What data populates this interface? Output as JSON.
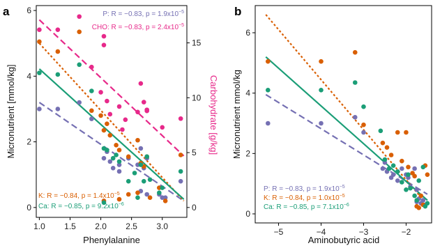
{
  "chart_data": [
    {
      "type": "scatter",
      "panel_label": "a",
      "xlabel": "Phenylalanine",
      "ylabel": "Micronutrient [mmol/kg]",
      "ylabel_right": "Carbohydrate [g/kg]",
      "xlim": [
        0.95,
        3.4
      ],
      "ylim": [
        -0.3,
        6.15
      ],
      "ylim_right": [
        -0.9,
        18.4
      ],
      "x_ticks": [
        1.0,
        1.5,
        2.0,
        2.5,
        3.0
      ],
      "x_tick_labels": [
        "1.0",
        "1.5",
        "2.0",
        "2.5",
        "3.0"
      ],
      "y_ticks": [
        0,
        2,
        4,
        6
      ],
      "y_tick_labels": [
        "0",
        "2",
        "4",
        "6"
      ],
      "y_right_ticks": [
        0,
        5,
        10,
        15
      ],
      "y_right_tick_labels": [
        "0",
        "5",
        "10",
        "15"
      ],
      "grid": false,
      "annotations": {
        "p": {
          "pre": "P: R = −0.83, p = 1.9x10",
          "exp": "−5"
        },
        "cho": {
          "pre": "CHO: R = −0.83, p = 2.4x10",
          "exp": "−5"
        },
        "k": {
          "pre": "K:  R = −0.84, p = 1.4x10",
          "exp": "−5"
        },
        "ca": {
          "pre": "Ca: R = −0.85, p = 9.2x10",
          "exp": "−6"
        }
      },
      "series": [
        {
          "color": "#7570b3",
          "axis": "left",
          "line": "dashed",
          "fit": [
            [
              1.0,
              3.2
            ],
            [
              3.35,
              0.2
            ]
          ],
          "points": [
            [
              1.0,
              3.0
            ],
            [
              1.3,
              3.0
            ],
            [
              1.65,
              3.2
            ],
            [
              1.85,
              2.7
            ],
            [
              2.05,
              1.5
            ],
            [
              2.1,
              1.7
            ],
            [
              2.15,
              1.4
            ],
            [
              2.2,
              1.2
            ],
            [
              2.3,
              1.3
            ],
            [
              2.3,
              1.1
            ],
            [
              2.45,
              1.5
            ],
            [
              2.6,
              1.3
            ],
            [
              2.65,
              1.8
            ],
            [
              2.7,
              1.2
            ],
            [
              2.75,
              1.5
            ],
            [
              2.75,
              0.4
            ],
            [
              2.95,
              0.4
            ],
            [
              3.0,
              0.3
            ],
            [
              3.05,
              0.3
            ],
            [
              3.3,
              0.8
            ],
            [
              2.05,
              0.2
            ],
            [
              2.65,
              0.5
            ]
          ]
        },
        {
          "color": "#d95f02",
          "axis": "left",
          "line": "dotted",
          "fit": [
            [
              1.0,
              5.0
            ],
            [
              3.35,
              0.2
            ]
          ],
          "points": [
            [
              1.0,
              5.05
            ],
            [
              1.3,
              4.75
            ],
            [
              1.65,
              5.35
            ],
            [
              1.85,
              2.95
            ],
            [
              2.0,
              2.8
            ],
            [
              2.05,
              2.35
            ],
            [
              2.1,
              2.55
            ],
            [
              2.15,
              2.2
            ],
            [
              2.25,
              1.9
            ],
            [
              2.3,
              1.75
            ],
            [
              2.45,
              1.55
            ],
            [
              2.6,
              2.05
            ],
            [
              2.65,
              1.35
            ],
            [
              2.7,
              1.25
            ],
            [
              2.75,
              1.55
            ],
            [
              2.6,
              0.45
            ],
            [
              2.8,
              0.3
            ],
            [
              2.95,
              0.6
            ],
            [
              3.05,
              0.2
            ],
            [
              3.3,
              1.6
            ],
            [
              2.05,
              0.2
            ],
            [
              2.3,
              0.25
            ],
            [
              2.45,
              0.4
            ]
          ]
        },
        {
          "color": "#1b9e77",
          "axis": "left",
          "line": "solid",
          "fit": [
            [
              1.0,
              4.22
            ],
            [
              3.35,
              0.25
            ]
          ],
          "points": [
            [
              1.0,
              4.1
            ],
            [
              1.3,
              4.05
            ],
            [
              1.65,
              4.35
            ],
            [
              1.85,
              3.55
            ],
            [
              2.05,
              1.8
            ],
            [
              2.1,
              1.75
            ],
            [
              2.2,
              1.5
            ],
            [
              2.25,
              1.6
            ],
            [
              2.3,
              1.4
            ],
            [
              2.45,
              0.8
            ],
            [
              2.55,
              1.05
            ],
            [
              2.65,
              1.3
            ],
            [
              2.75,
              1.55
            ],
            [
              2.7,
              0.8
            ],
            [
              2.8,
              0.85
            ],
            [
              2.95,
              0.45
            ],
            [
              3.0,
              0.6
            ],
            [
              3.3,
              1.1
            ],
            [
              2.05,
              0.15
            ],
            [
              2.6,
              0.3
            ]
          ]
        },
        {
          "color": "#e7298a",
          "axis": "right",
          "line": "dashed",
          "fit": [
            [
              1.0,
              17.1
            ],
            [
              3.35,
              4.7
            ]
          ],
          "points": [
            [
              1.0,
              16.2
            ],
            [
              1.3,
              16.2
            ],
            [
              1.65,
              17.4
            ],
            [
              1.85,
              12.8
            ],
            [
              2.05,
              15.6
            ],
            [
              2.05,
              14.8
            ],
            [
              2.0,
              10.5
            ],
            [
              2.1,
              9.7
            ],
            [
              2.15,
              8.5
            ],
            [
              2.3,
              9.2
            ],
            [
              2.35,
              7.1
            ],
            [
              2.4,
              8.0
            ],
            [
              2.6,
              8.7
            ],
            [
              2.65,
              11.3
            ],
            [
              2.7,
              9.6
            ],
            [
              2.75,
              8.9
            ],
            [
              2.75,
              8.8
            ],
            [
              3.0,
              7.3
            ],
            [
              3.3,
              8.1
            ]
          ]
        }
      ]
    },
    {
      "type": "scatter",
      "panel_label": "b",
      "xlabel": "Aminobutyric acid",
      "ylabel": "Micronutrient mmol/kg",
      "xlim": [
        -5.55,
        -1.4
      ],
      "ylim": [
        -0.3,
        6.9
      ],
      "x_ticks": [
        -5,
        -4,
        -3,
        -2
      ],
      "x_tick_labels": [
        "−5",
        "−4",
        "−3",
        "−2"
      ],
      "y_ticks": [
        0,
        2,
        4,
        6
      ],
      "y_tick_labels": [
        "0",
        "2",
        "4",
        "6"
      ],
      "grid": false,
      "annotations": {
        "p": {
          "pre": "P:  R = −0.83, p = 1.9x10",
          "exp": "−5"
        },
        "k": {
          "pre": "K:  R = −0.84, p = 1.0x10",
          "exp": "−5"
        },
        "ca": {
          "pre": "Ca: R = −0.85, p = 7.1x10",
          "exp": "−6"
        }
      },
      "series": [
        {
          "color": "#7570b3",
          "axis": "left",
          "line": "dashed",
          "fit": [
            [
              -5.3,
              3.95
            ],
            [
              -1.5,
              0.65
            ]
          ],
          "points": [
            [
              -5.25,
              3.0
            ],
            [
              -4.0,
              3.0
            ],
            [
              -3.2,
              3.2
            ],
            [
              -3.0,
              2.7
            ],
            [
              -2.55,
              1.5
            ],
            [
              -2.5,
              1.7
            ],
            [
              -2.45,
              1.4
            ],
            [
              -2.35,
              1.2
            ],
            [
              -2.3,
              1.3
            ],
            [
              -2.2,
              1.1
            ],
            [
              -2.1,
              1.5
            ],
            [
              -2.0,
              1.3
            ],
            [
              -1.95,
              1.2
            ],
            [
              -1.9,
              0.9
            ],
            [
              -1.8,
              1.5
            ],
            [
              -1.75,
              0.4
            ],
            [
              -1.7,
              0.5
            ],
            [
              -1.65,
              0.35
            ],
            [
              -1.6,
              0.45
            ],
            [
              -1.55,
              0.3
            ],
            [
              -1.75,
              0.8
            ]
          ]
        },
        {
          "color": "#d95f02",
          "axis": "left",
          "line": "dotted",
          "fit": [
            [
              -5.3,
              6.6
            ],
            [
              -1.5,
              0.3
            ]
          ],
          "points": [
            [
              -5.25,
              5.05
            ],
            [
              -4.0,
              5.05
            ],
            [
              -3.2,
              5.35
            ],
            [
              -3.0,
              2.95
            ],
            [
              -2.55,
              2.35
            ],
            [
              -2.45,
              2.2
            ],
            [
              -2.35,
              1.95
            ],
            [
              -2.2,
              2.7
            ],
            [
              -2.1,
              1.75
            ],
            [
              -2.0,
              2.7
            ],
            [
              -1.95,
              1.55
            ],
            [
              -1.85,
              1.35
            ],
            [
              -1.8,
              1.25
            ],
            [
              -1.75,
              0.25
            ],
            [
              -1.7,
              0.2
            ],
            [
              -1.65,
              0.6
            ],
            [
              -1.6,
              0.3
            ],
            [
              -1.55,
              1.6
            ],
            [
              -1.5,
              1.3
            ]
          ]
        },
        {
          "color": "#1b9e77",
          "axis": "left",
          "line": "solid",
          "fit": [
            [
              -5.3,
              5.2
            ],
            [
              -1.5,
              0.45
            ]
          ],
          "points": [
            [
              -5.25,
              4.1
            ],
            [
              -4.0,
              4.1
            ],
            [
              -3.2,
              4.35
            ],
            [
              -3.0,
              3.55
            ],
            [
              -2.6,
              2.75
            ],
            [
              -2.5,
              1.8
            ],
            [
              -2.4,
              1.5
            ],
            [
              -2.3,
              1.6
            ],
            [
              -2.2,
              1.4
            ],
            [
              -2.1,
              1.05
            ],
            [
              -2.0,
              0.8
            ],
            [
              -1.95,
              1.3
            ],
            [
              -1.9,
              0.85
            ],
            [
              -1.8,
              0.6
            ],
            [
              -1.75,
              0.45
            ],
            [
              -1.7,
              1.1
            ],
            [
              -1.6,
              1.55
            ],
            [
              -1.55,
              0.25
            ],
            [
              -1.5,
              0.35
            ]
          ]
        }
      ]
    }
  ]
}
